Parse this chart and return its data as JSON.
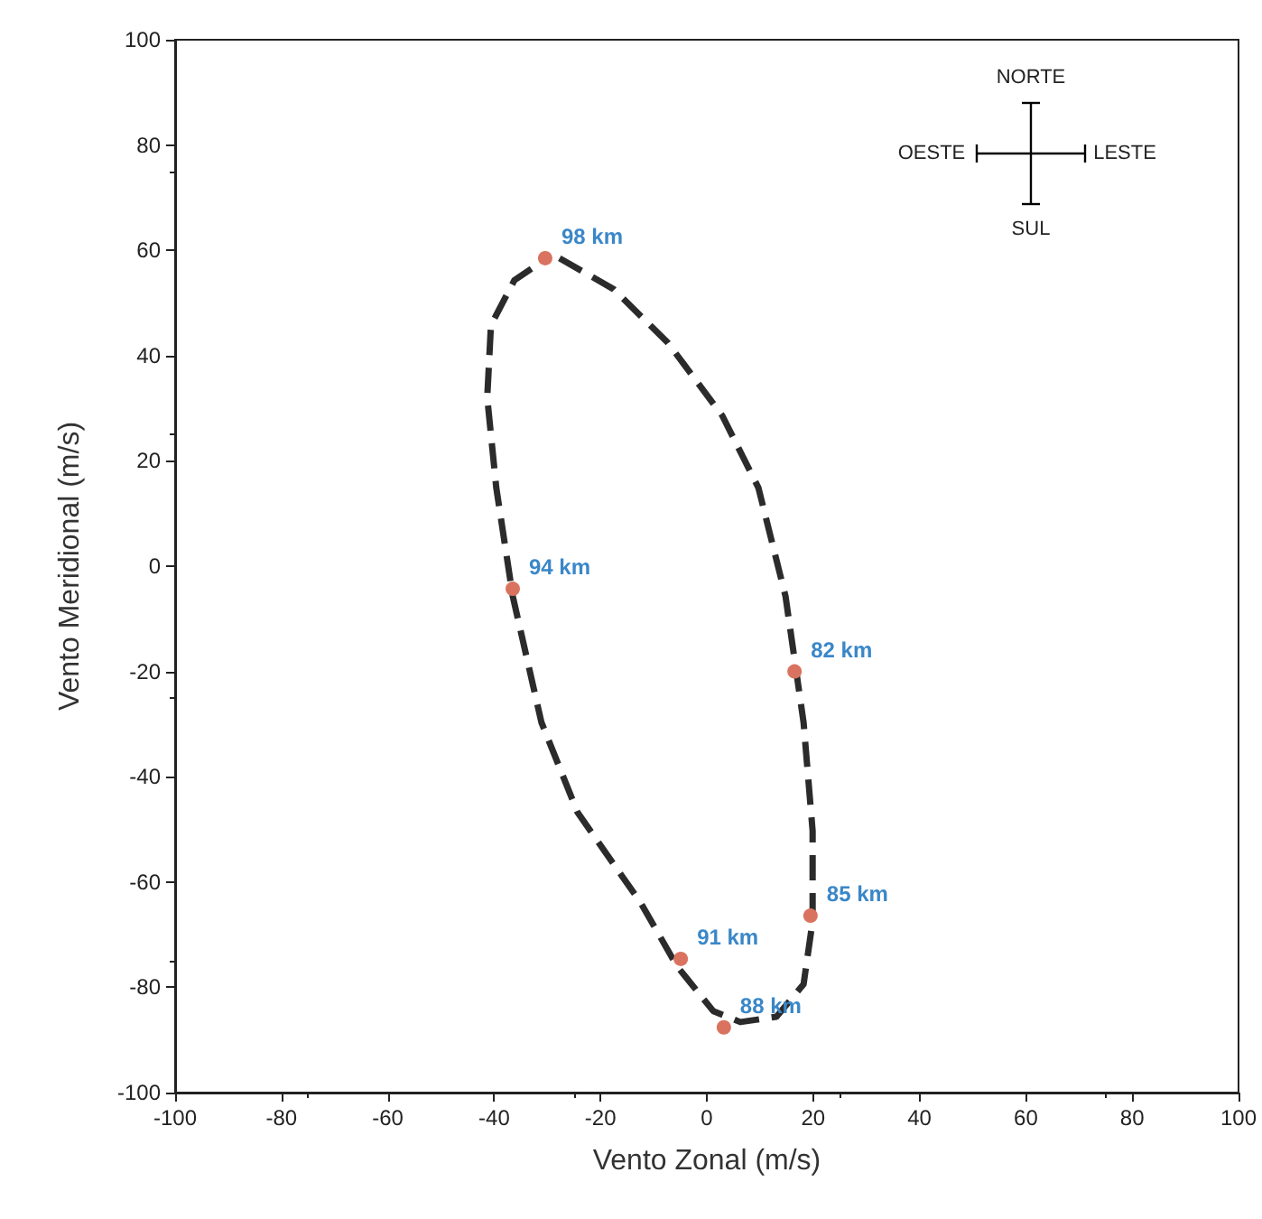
{
  "chart_data": {
    "type": "scatter",
    "xlabel": "Vento Zonal (m/s)",
    "ylabel": "Vento Meridional (m/s)",
    "xlim": [
      -100,
      100
    ],
    "xticks": [
      -100,
      -80,
      -60,
      -40,
      -20,
      0,
      20,
      40,
      60,
      80,
      100
    ],
    "ylim": [
      -100,
      100
    ],
    "yticks": [
      -100,
      -80,
      -60,
      -40,
      -20,
      0,
      20,
      40,
      60,
      80,
      100
    ],
    "annotations": [
      "NORTE",
      "OESTE",
      "LESTE",
      "SUL",
      {
        "text": "98 km",
        "x": -30.4,
        "y": 58.5
      },
      {
        "text": "94 km",
        "x": -36.5,
        "y": -4.3
      },
      {
        "text": "82 km",
        "x": 16.5,
        "y": -20
      },
      {
        "text": "85 km",
        "x": 19.5,
        "y": -66.4
      },
      {
        "text": "91 km",
        "x": -4.9,
        "y": -74.6
      },
      {
        "text": "88 km",
        "x": 3.2,
        "y": -87.6
      }
    ],
    "series": [
      {
        "type": "line",
        "line_style": "dashed",
        "marker": "none",
        "color": "#2b2b2b",
        "x": [
          -27.7,
          -17.5,
          -7.3,
          2.9,
          9.7,
          14.8,
          18.2,
          19.9,
          19.9,
          18.2,
          13.1,
          6.3,
          1.2,
          -5.6,
          -12.4,
          -24.3,
          -31.1,
          -36.5,
          -39.6,
          -41.3,
          -40.6,
          -36.2,
          -31.1
        ],
        "values": [
          58.5,
          52.6,
          42.4,
          28.6,
          14.9,
          -5.7,
          -29.7,
          -50.3,
          -67.4,
          -79.4,
          -85.6,
          -86.6,
          -84.5,
          -76,
          -64,
          -46.8,
          -29.7,
          -5.7,
          14.9,
          32,
          45.8,
          54.3,
          57.8
        ]
      },
      {
        "marker": "circle",
        "color": "#d9735f",
        "x": [
          -30.4,
          -36.5,
          16.5,
          19.5,
          -4.9,
          3.2
        ],
        "values": [
          58.5,
          -4.3,
          -20,
          -66.4,
          -74.6,
          -87.6
        ]
      }
    ]
  }
}
